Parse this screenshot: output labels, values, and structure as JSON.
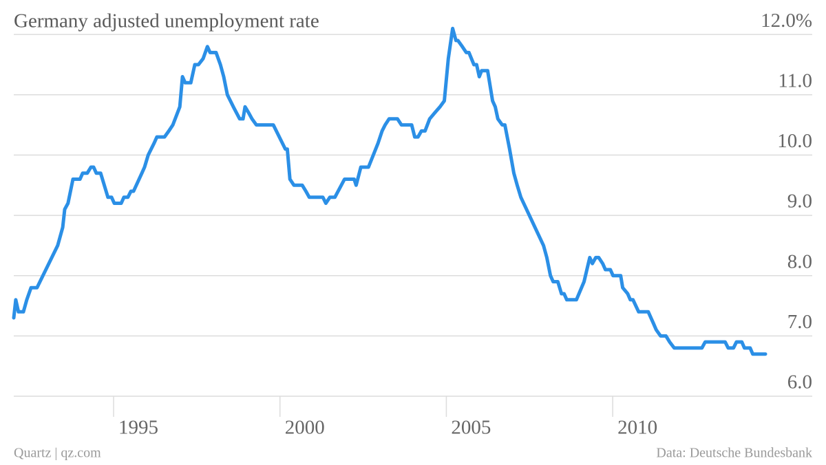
{
  "chart_data": {
    "type": "line",
    "title": "Germany adjusted unemployment rate",
    "source": "Data: Deutsche Bundesbank",
    "credit": "Quartz | qz.com",
    "x": [
      1992.0,
      1992.06,
      1992.14,
      1992.29,
      1992.39,
      1992.52,
      1992.7,
      1993.32,
      1993.47,
      1993.53,
      1993.63,
      1993.78,
      1993.99,
      1994.07,
      1994.21,
      1994.32,
      1994.4,
      1994.48,
      1994.61,
      1994.83,
      1994.94,
      1995.02,
      1995.23,
      1995.31,
      1995.43,
      1995.52,
      1995.6,
      1995.85,
      1995.93,
      1996.04,
      1996.22,
      1996.3,
      1996.53,
      1996.66,
      1996.78,
      1996.99,
      1997.07,
      1997.15,
      1997.32,
      1997.44,
      1997.55,
      1997.69,
      1997.82,
      1997.9,
      1998.08,
      1998.21,
      1998.31,
      1998.42,
      1998.6,
      1998.79,
      1998.89,
      1998.95,
      1999.06,
      1999.16,
      1999.29,
      1999.8,
      2000.16,
      2000.22,
      2000.3,
      2000.42,
      2000.67,
      2000.78,
      2000.88,
      2001.29,
      2001.38,
      2001.5,
      2001.65,
      2001.94,
      2002.23,
      2002.29,
      2002.43,
      2002.66,
      2002.95,
      2003.07,
      2003.16,
      2003.28,
      2003.53,
      2003.65,
      2003.96,
      2004.05,
      2004.15,
      2004.25,
      2004.36,
      2004.5,
      2004.65,
      2004.81,
      2004.94,
      2005.06,
      2005.19,
      2005.29,
      2005.35,
      2005.48,
      2005.6,
      2005.68,
      2005.83,
      2005.91,
      2005.99,
      2006.06,
      2006.24,
      2006.3,
      2006.39,
      2006.47,
      2006.55,
      2006.68,
      2006.76,
      2006.9,
      2007.03,
      2007.13,
      2007.24,
      2007.92,
      2008.02,
      2008.13,
      2008.21,
      2008.35,
      2008.46,
      2008.54,
      2008.62,
      2008.91,
      2009.14,
      2009.31,
      2009.39,
      2009.49,
      2009.58,
      2009.7,
      2009.78,
      2009.93,
      2010.01,
      2010.24,
      2010.3,
      2010.45,
      2010.53,
      2010.61,
      2010.78,
      2011.07,
      2011.23,
      2011.31,
      2011.44,
      2011.6,
      2011.71,
      2011.85,
      2012.68,
      2012.78,
      2013.38,
      2013.47,
      2013.63,
      2013.72,
      2013.88,
      2013.96,
      2014.13,
      2014.21,
      2014.59
    ],
    "series": [
      {
        "color": "#2b8fe6",
        "values": [
          7.3,
          7.6,
          7.4,
          7.4,
          7.6,
          7.8,
          7.8,
          8.5,
          8.8,
          9.1,
          9.2,
          9.6,
          9.6,
          9.7,
          9.7,
          9.8,
          9.8,
          9.7,
          9.7,
          9.3,
          9.3,
          9.2,
          9.2,
          9.3,
          9.3,
          9.4,
          9.4,
          9.7,
          9.8,
          10.0,
          10.2,
          10.3,
          10.3,
          10.4,
          10.5,
          10.8,
          11.3,
          11.2,
          11.2,
          11.5,
          11.5,
          11.6,
          11.8,
          11.7,
          11.7,
          11.5,
          11.3,
          11.0,
          10.8,
          10.6,
          10.6,
          10.8,
          10.7,
          10.6,
          10.5,
          10.5,
          10.1,
          10.1,
          9.6,
          9.5,
          9.5,
          9.4,
          9.3,
          9.3,
          9.2,
          9.3,
          9.3,
          9.6,
          9.6,
          9.5,
          9.8,
          9.8,
          10.2,
          10.4,
          10.5,
          10.6,
          10.6,
          10.5,
          10.5,
          10.3,
          10.3,
          10.4,
          10.4,
          10.6,
          10.7,
          10.8,
          10.9,
          11.6,
          12.1,
          11.9,
          11.9,
          11.8,
          11.7,
          11.7,
          11.5,
          11.5,
          11.3,
          11.4,
          11.4,
          11.2,
          10.9,
          10.8,
          10.6,
          10.5,
          10.5,
          10.1,
          9.7,
          9.5,
          9.3,
          8.5,
          8.3,
          8.0,
          7.9,
          7.9,
          7.7,
          7.7,
          7.6,
          7.6,
          7.9,
          8.3,
          8.2,
          8.3,
          8.3,
          8.2,
          8.1,
          8.1,
          8.0,
          8.0,
          7.8,
          7.7,
          7.6,
          7.6,
          7.4,
          7.4,
          7.2,
          7.1,
          7.0,
          7.0,
          6.9,
          6.8,
          6.8,
          6.9,
          6.9,
          6.8,
          6.8,
          6.9,
          6.9,
          6.8,
          6.8,
          6.7,
          6.7
        ]
      }
    ],
    "xlim": [
      1992.0,
      2014.59
    ],
    "xticks": [
      1995,
      2000,
      2005,
      2010
    ],
    "ylim": [
      6.0,
      12.15
    ],
    "yticks": [
      {
        "value": 6,
        "label": "6.0"
      },
      {
        "value": 7,
        "label": "7.0"
      },
      {
        "value": 8,
        "label": "8.0"
      },
      {
        "value": 9,
        "label": "9.0"
      },
      {
        "value": 10,
        "label": "10.0"
      },
      {
        "value": 11,
        "label": "11.0"
      },
      {
        "value": 12,
        "label": "12.0%"
      }
    ],
    "grid": true
  }
}
